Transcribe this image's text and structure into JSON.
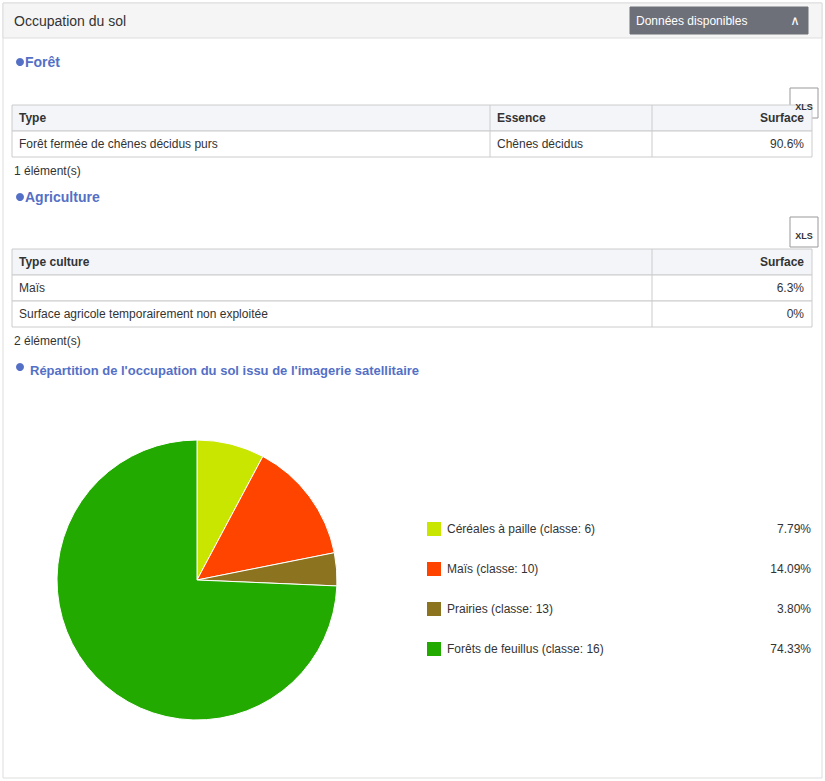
{
  "chart_data": {
    "type": "pie",
    "title": "Répartition de l'occupation du sol issu de l'imagerie satellitaire",
    "categories": [
      "Céréales à paille (classe: 6)",
      "Maïs (classe: 10)",
      "Prairies (classe: 13)",
      "Forêts de feuillus (classe: 16)"
    ],
    "values": [
      7.79,
      14.09,
      3.8,
      74.33
    ],
    "value_labels": [
      "7.79%",
      "14.09%",
      "3.80%",
      "74.33%"
    ],
    "colors": [
      "#c8e600",
      "#ff4400",
      "#8b7320",
      "#22aa00"
    ],
    "legend": "right",
    "annotations": [
      "Occupation du sol",
      "Données disponibles",
      "∧",
      "Forêt",
      "XLS",
      "Type",
      "Essence",
      "Surface",
      "Forêt fermée de chênes décidus purs",
      "Chênes décidus",
      "90.6%",
      "1 élément(s)",
      "Agriculture",
      "XLS",
      "Type culture",
      "Surface",
      "Maïs",
      "6.3%",
      "Surface agricole temporairement non exploitée",
      "0%",
      "2 élément(s)"
    ]
  }
}
